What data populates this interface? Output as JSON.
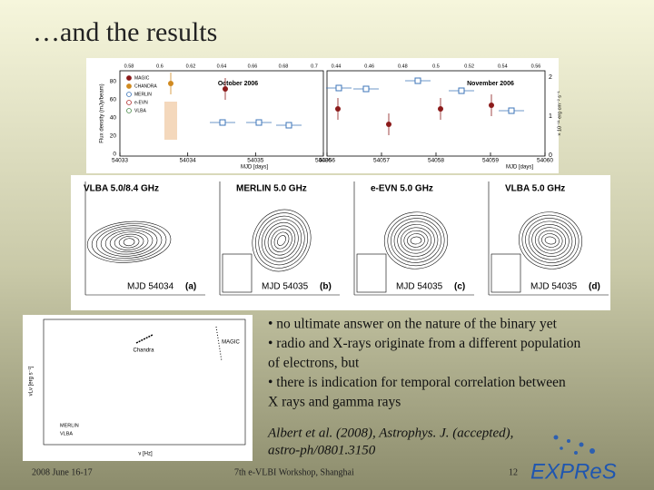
{
  "title": "…and the results",
  "lightcurve": {
    "y_label": "Flux density (mJy/beam)",
    "x_label": "MJD [days]",
    "y2_label": "× 10⁻¹¹ erg cm⁻² s⁻¹",
    "legend": [
      "MAGIC",
      "CHANDRA",
      "MERLIN",
      "e-EVN",
      "VLBA"
    ],
    "yticks": [
      "80",
      "60",
      "40",
      "20",
      "0"
    ],
    "y2ticks": [
      "2",
      "1",
      "0"
    ],
    "panels": [
      {
        "label": "October 2006",
        "xticks": [
          "54033",
          "54034",
          "54035",
          "54036"
        ],
        "phase_ticks": [
          "0.58",
          "0.6",
          "0.62",
          "0.64",
          "0.66",
          "0.68",
          "0.7"
        ]
      },
      {
        "label": "November 2006",
        "xticks": [
          "54056",
          "54057",
          "54058",
          "54059",
          "54060"
        ],
        "phase_ticks": [
          "0.44",
          "0.46",
          "0.48",
          "0.5",
          "0.52",
          "0.54",
          "0.56"
        ]
      }
    ]
  },
  "maps": [
    {
      "title": "VLBA 5.0/8.4 GHz",
      "caption": "MJD 54034",
      "tag": "(a)"
    },
    {
      "title": "MERLIN 5.0 GHz",
      "caption": "MJD 54035",
      "tag": "(b)"
    },
    {
      "title": "e-EVN 5.0 GHz",
      "caption": "MJD 54035",
      "tag": "(c)"
    },
    {
      "title": "VLBA 5.0 GHz",
      "caption": "MJD 54035",
      "tag": "(d)"
    }
  ],
  "sed": {
    "y_label": "νLν [erg s⁻¹]",
    "x_label": "ν [Hz]",
    "labels": [
      "Chandra",
      "MAGIC"
    ],
    "legend": [
      "MERLIN",
      "VLBA"
    ]
  },
  "bullets": [
    "• no ultimate answer on the nature of the binary yet",
    "• radio and X-rays originate from a different population",
    "of electrons, but",
    "• there is indication for temporal correlation between",
    "X rays and gamma rays"
  ],
  "citation": [
    "Albert et al. (2008), Astrophys. J. (accepted),",
    "astro-ph/0801.3150"
  ],
  "footer": {
    "date": "2008 June 16-17",
    "event": "7th e-VLBI Workshop, Shanghai",
    "page": "12",
    "logo": "EXPReS"
  }
}
